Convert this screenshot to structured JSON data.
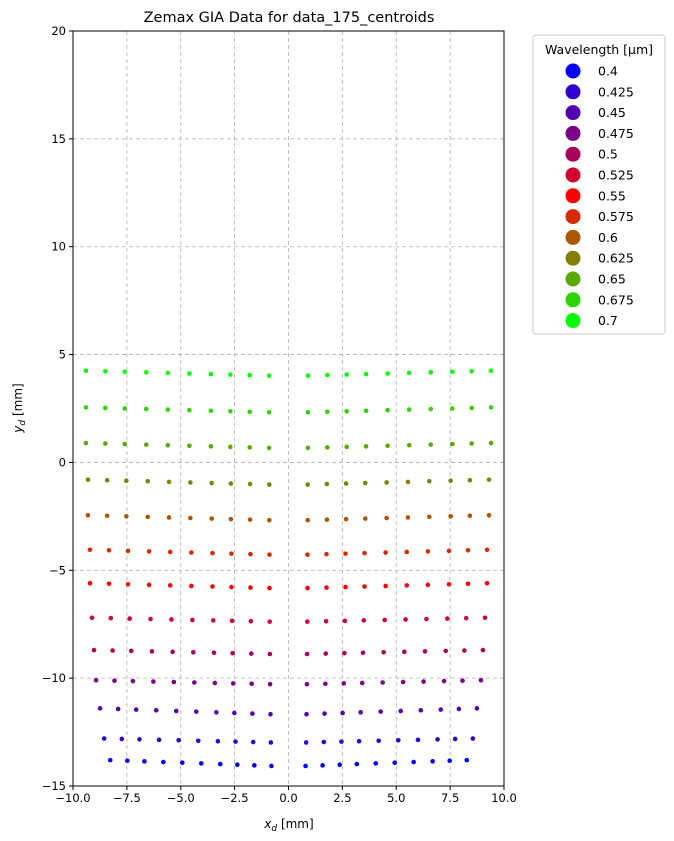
{
  "chart_data": {
    "type": "scatter",
    "title": "Zemax GIA Data for data_175_centroids",
    "xlabel_main": "x",
    "xlabel_sub": "d",
    "xlabel_unit": " [mm]",
    "ylabel_main": "y",
    "ylabel_sub": "d",
    "ylabel_unit": " [mm]",
    "xlim": [
      -10,
      10
    ],
    "ylim": [
      -15,
      20
    ],
    "xticks": [
      -10,
      -7.5,
      -5,
      -2.5,
      0,
      2.5,
      5,
      7.5,
      10
    ],
    "xtick_labels": [
      "−10.0",
      "−7.5",
      "−5.0",
      "−2.5",
      "0.0",
      "2.5",
      "5.0",
      "7.5",
      "10.0"
    ],
    "yticks": [
      -15,
      -10,
      -5,
      0,
      5,
      10,
      15,
      20
    ],
    "ytick_labels": [
      "−15",
      "−10",
      "−5",
      "0",
      "5",
      "10",
      "15",
      "20"
    ],
    "grid": true,
    "grid_style": "dashed",
    "legend_title": "Wavelength [µm]",
    "legend_position": "outside upper right",
    "field_x": [
      -9.4,
      -8.5,
      -7.6,
      -6.6,
      -5.6,
      -4.6,
      -3.6,
      -2.7,
      -1.8,
      -0.9,
      0.9,
      1.8,
      2.7,
      3.6,
      4.6,
      5.6,
      6.6,
      7.6,
      8.5,
      9.4
    ],
    "series": [
      {
        "name": "0.4",
        "color": "#0000ff",
        "y_center": -13.8,
        "y_edge": -14.1,
        "x_scale": 0.88
      },
      {
        "name": "0.425",
        "color": "#2f00d0",
        "y_center": -12.8,
        "y_edge": -13.0,
        "x_scale": 0.91
      },
      {
        "name": "0.45",
        "color": "#5200ad",
        "y_center": -11.4,
        "y_edge": -11.7,
        "x_scale": 0.93
      },
      {
        "name": "0.475",
        "color": "#7a0085",
        "y_center": -10.1,
        "y_edge": -10.3,
        "x_scale": 0.95
      },
      {
        "name": "0.5",
        "color": "#a60059",
        "y_center": -8.7,
        "y_edge": -8.9,
        "x_scale": 0.96
      },
      {
        "name": "0.525",
        "color": "#d00030",
        "y_center": -7.2,
        "y_edge": -7.4,
        "x_scale": 0.97
      },
      {
        "name": "0.55",
        "color": "#ff0000",
        "y_center": -5.6,
        "y_edge": -5.85,
        "x_scale": 0.98
      },
      {
        "name": "0.575",
        "color": "#d82a00",
        "y_center": -4.05,
        "y_edge": -4.3,
        "x_scale": 0.98
      },
      {
        "name": "0.6",
        "color": "#ad5500",
        "y_center": -2.45,
        "y_edge": -2.7,
        "x_scale": 0.99
      },
      {
        "name": "0.625",
        "color": "#838000",
        "y_center": -0.8,
        "y_edge": -1.05,
        "x_scale": 0.99
      },
      {
        "name": "0.65",
        "color": "#58aa00",
        "y_center": 0.9,
        "y_edge": 0.65,
        "x_scale": 1.0
      },
      {
        "name": "0.675",
        "color": "#2dd400",
        "y_center": 2.55,
        "y_edge": 2.3,
        "x_scale": 1.0
      },
      {
        "name": "0.7",
        "color": "#00ff00",
        "y_center": 4.25,
        "y_edge": 4.0,
        "x_scale": 1.0
      }
    ]
  }
}
